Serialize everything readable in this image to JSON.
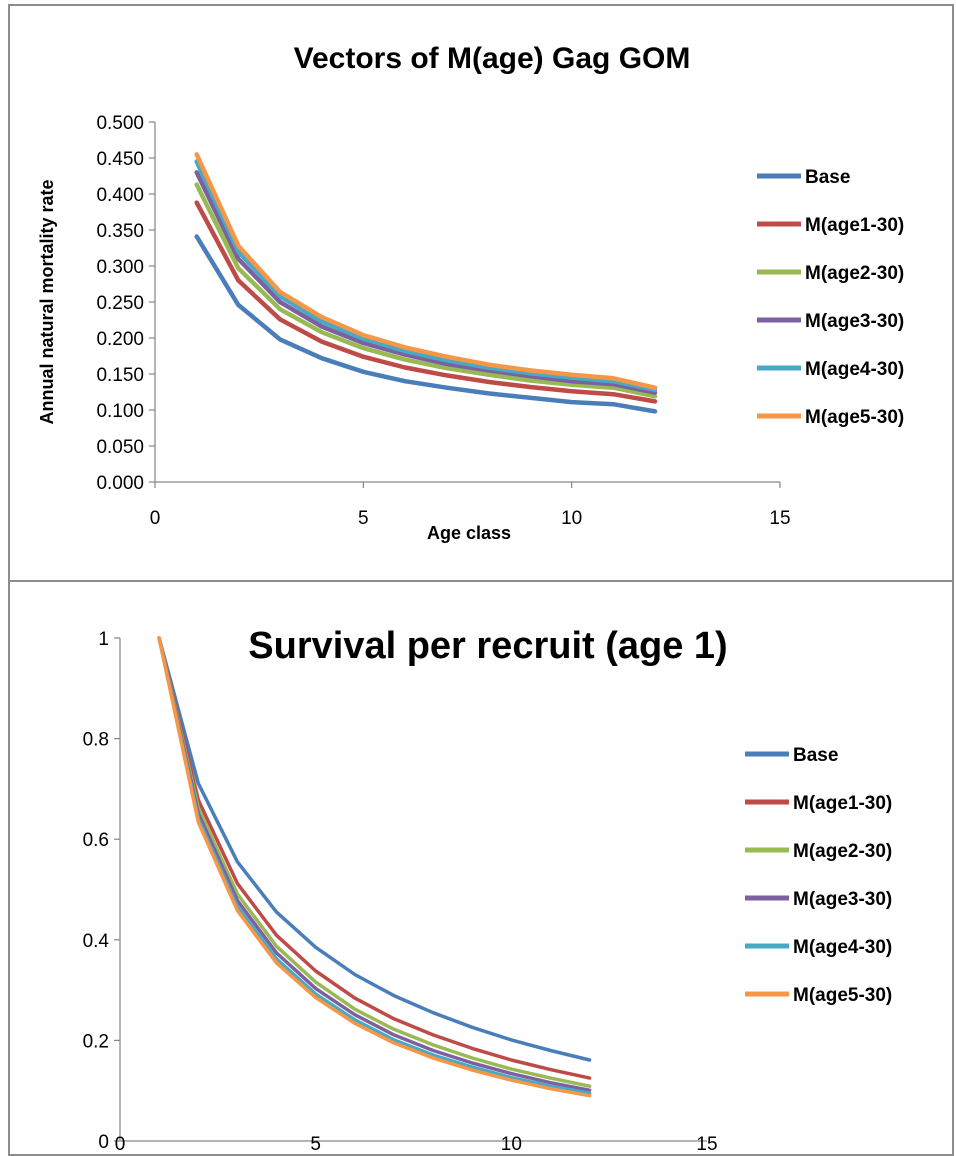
{
  "chart_data": [
    {
      "type": "line",
      "title": "Vectors of M(age) Gag GOM",
      "xlabel": "Age class",
      "ylabel": "Annual natural mortality rate",
      "xlim": [
        0,
        15
      ],
      "ylim": [
        0,
        0.5
      ],
      "x_ticks": [
        "0",
        "5",
        "10",
        "15"
      ],
      "y_ticks": [
        "0.000",
        "0.050",
        "0.100",
        "0.150",
        "0.200",
        "0.250",
        "0.300",
        "0.350",
        "0.400",
        "0.450",
        "0.500"
      ],
      "grid": false,
      "legend_position": "right",
      "x": [
        1,
        2,
        3,
        4,
        5,
        6,
        7,
        8,
        9,
        10,
        11,
        12
      ],
      "series": [
        {
          "name": "Base",
          "color": "#4a7ebb",
          "values": [
            0.341,
            0.246,
            0.198,
            0.172,
            0.153,
            0.14,
            0.131,
            0.123,
            0.117,
            0.111,
            0.108,
            0.098
          ]
        },
        {
          "name": "M(age1-30)",
          "color": "#be4b48",
          "values": [
            0.388,
            0.28,
            0.226,
            0.195,
            0.174,
            0.159,
            0.148,
            0.139,
            0.132,
            0.126,
            0.122,
            0.112
          ]
        },
        {
          "name": "M(age2-30)",
          "color": "#98b954",
          "values": [
            0.413,
            0.297,
            0.24,
            0.208,
            0.186,
            0.17,
            0.158,
            0.149,
            0.141,
            0.135,
            0.131,
            0.119
          ]
        },
        {
          "name": "M(age3-30)",
          "color": "#7d60a0",
          "values": [
            0.43,
            0.31,
            0.25,
            0.216,
            0.193,
            0.177,
            0.164,
            0.155,
            0.147,
            0.14,
            0.136,
            0.124
          ]
        },
        {
          "name": "M(age4-30)",
          "color": "#46aac5",
          "values": [
            0.445,
            0.32,
            0.258,
            0.223,
            0.199,
            0.182,
            0.169,
            0.159,
            0.151,
            0.145,
            0.14,
            0.128
          ]
        },
        {
          "name": "M(age5-30)",
          "color": "#f79646",
          "values": [
            0.455,
            0.328,
            0.264,
            0.229,
            0.204,
            0.187,
            0.174,
            0.163,
            0.155,
            0.149,
            0.144,
            0.131
          ]
        }
      ]
    },
    {
      "type": "line",
      "title": "Survival per recruit (age 1)",
      "xlabel": "",
      "ylabel": "",
      "xlim": [
        0,
        15
      ],
      "ylim": [
        0,
        1
      ],
      "x_ticks": [
        "0",
        "5",
        "10",
        "15"
      ],
      "y_ticks": [
        "0",
        "0.2",
        "0.4",
        "0.6",
        "0.8",
        "1"
      ],
      "grid": false,
      "legend_position": "right",
      "x": [
        1,
        2,
        3,
        4,
        5,
        6,
        7,
        8,
        9,
        10,
        11,
        12
      ],
      "series": [
        {
          "name": "Base",
          "color": "#4a7ebb",
          "values": [
            1.0,
            0.711,
            0.555,
            0.455,
            0.385,
            0.331,
            0.289,
            0.255,
            0.226,
            0.201,
            0.18,
            0.161
          ]
        },
        {
          "name": "M(age1-30)",
          "color": "#be4b48",
          "values": [
            1.0,
            0.678,
            0.512,
            0.409,
            0.338,
            0.284,
            0.243,
            0.211,
            0.184,
            0.161,
            0.142,
            0.125
          ]
        },
        {
          "name": "M(age2-30)",
          "color": "#98b954",
          "values": [
            1.0,
            0.662,
            0.491,
            0.387,
            0.316,
            0.262,
            0.222,
            0.191,
            0.165,
            0.143,
            0.125,
            0.109
          ]
        },
        {
          "name": "M(age3-30)",
          "color": "#7d60a0",
          "values": [
            1.0,
            0.651,
            0.478,
            0.374,
            0.303,
            0.251,
            0.211,
            0.18,
            0.155,
            0.134,
            0.116,
            0.101
          ]
        },
        {
          "name": "M(age4-30)",
          "color": "#46aac5",
          "values": [
            1.0,
            0.641,
            0.466,
            0.362,
            0.292,
            0.241,
            0.201,
            0.171,
            0.147,
            0.126,
            0.109,
            0.095
          ]
        },
        {
          "name": "M(age5-30)",
          "color": "#f79646",
          "values": [
            1.0,
            0.634,
            0.458,
            0.354,
            0.285,
            0.234,
            0.195,
            0.165,
            0.141,
            0.121,
            0.104,
            0.09
          ]
        }
      ]
    }
  ]
}
